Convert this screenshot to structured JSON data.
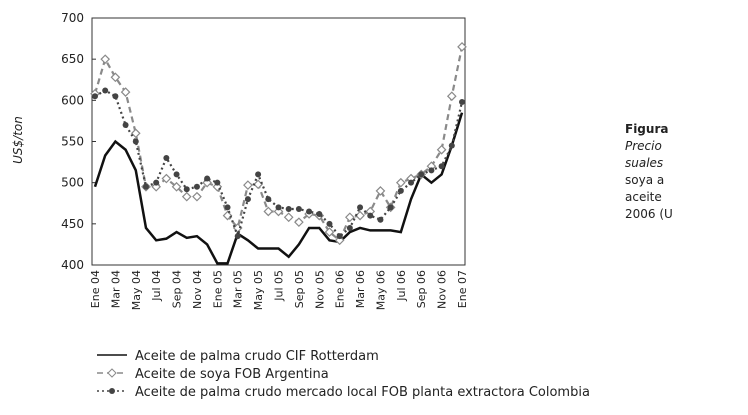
{
  "chart_data": {
    "type": "line",
    "ylabel": "US$/ton",
    "categories": [
      "Ene 04",
      null,
      "Mar 04",
      null,
      "May 04",
      null,
      "Jul 04",
      null,
      "Sep 04",
      null,
      "Nov 04",
      null,
      "Ene 05",
      null,
      "Mar 05",
      null,
      "May 05",
      null,
      "Jul 05",
      null,
      "Sep 05",
      null,
      "Nov 05",
      null,
      "Ene 06",
      null,
      "Mar 06",
      null,
      "May 06",
      null,
      "Jul 06",
      null,
      "Sep 06",
      null,
      "Nov 06",
      null,
      "Ene 07"
    ],
    "series": [
      {
        "name": "Aceite de palma crudo CIF Rotterdam",
        "color": "#111111",
        "dash": "solid",
        "marker": "none",
        "values": [
          495,
          533,
          550,
          540,
          515,
          445,
          430,
          432,
          440,
          433,
          435,
          425,
          402,
          402,
          438,
          430,
          420,
          420,
          420,
          410,
          425,
          445,
          445,
          430,
          428,
          440,
          445,
          442,
          442,
          442,
          440,
          480,
          510,
          500,
          510,
          545,
          585
        ]
      },
      {
        "name": "Aceite de soya FOB Argentina",
        "color": "#8a8a8a",
        "dash": "dashed",
        "marker": "diamond",
        "values": [
          608,
          650,
          628,
          610,
          560,
          495,
          495,
          505,
          495,
          483,
          483,
          500,
          495,
          460,
          445,
          497,
          498,
          465,
          465,
          458,
          452,
          462,
          460,
          440,
          430,
          458,
          460,
          465,
          490,
          470,
          500,
          505,
          510,
          520,
          540,
          605,
          665
        ]
      },
      {
        "name": "Aceite de palma crudo mercado local FOB planta extractora Colombia",
        "color": "#444444",
        "dash": "dotted",
        "marker": "circle",
        "values": [
          605,
          612,
          605,
          570,
          550,
          495,
          500,
          530,
          510,
          492,
          495,
          505,
          500,
          470,
          435,
          480,
          510,
          480,
          470,
          468,
          468,
          465,
          462,
          450,
          435,
          445,
          470,
          460,
          455,
          470,
          490,
          500,
          510,
          515,
          520,
          545,
          598
        ]
      }
    ],
    "ylim": [
      400,
      700
    ],
    "yticks": [
      400,
      450,
      500,
      550,
      600,
      650,
      700
    ],
    "grid": false,
    "legend": "bottom"
  },
  "caption": {
    "lines": [
      "Figura",
      "Precio",
      "suales",
      "soya a",
      "aceite",
      "2006 (U"
    ]
  }
}
